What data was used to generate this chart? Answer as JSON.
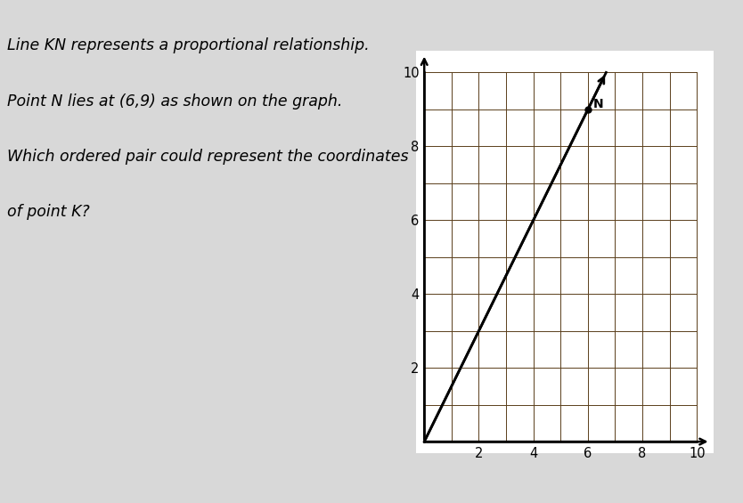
{
  "text_lines": [
    "Line KN represents a proportional relationship.",
    "Point N lies at (6,9) as shown on the graph.",
    "Which ordered pair could represent the coordinates",
    "of point K?"
  ],
  "text_fontsize": 12.5,
  "background_color": "#d8d8d8",
  "graph_background": "#ffffff",
  "line_x": [
    0,
    6.67
  ],
  "line_y": [
    0,
    10.0
  ],
  "point_N": [
    6,
    9
  ],
  "point_N_label": "N",
  "xlim": [
    0,
    10
  ],
  "ylim": [
    0,
    10
  ],
  "xticks": [
    2,
    4,
    6,
    8,
    10
  ],
  "yticks": [
    2,
    4,
    6,
    8,
    10
  ],
  "grid_color": "#5a3e1b",
  "axis_color": "#000000",
  "line_color": "#000000",
  "point_color": "#000000"
}
